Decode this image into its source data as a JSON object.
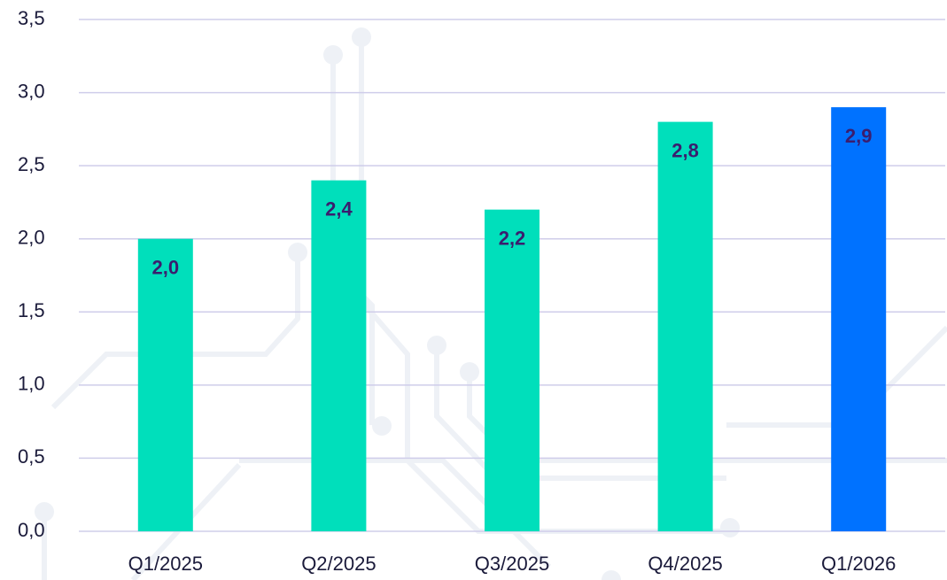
{
  "chart_data": {
    "type": "bar",
    "categories": [
      "Q1/2025",
      "Q2/2025",
      "Q3/2025",
      "Q4/2025",
      "Q1/2026"
    ],
    "values": [
      2.0,
      2.4,
      2.2,
      2.8,
      2.9
    ],
    "value_labels": [
      "2,0",
      "2,4",
      "2,2",
      "2,8",
      "2,9"
    ],
    "colors": [
      "#00dfbb",
      "#00dfbb",
      "#00dfbb",
      "#00dfbb",
      "#0072ff"
    ],
    "label_color": "#3b1d6e",
    "ylim": [
      0,
      3.5
    ],
    "yticks": [
      {
        "value": 0,
        "label": "0,0"
      },
      {
        "value": 0.5,
        "label": "0,5"
      },
      {
        "value": 1,
        "label": "1,0"
      },
      {
        "value": 1.5,
        "label": "1,5"
      },
      {
        "value": 2,
        "label": "2,0"
      },
      {
        "value": 2.5,
        "label": "2,5"
      },
      {
        "value": 3,
        "label": "3,0"
      },
      {
        "value": 3.5,
        "label": "3,5"
      }
    ],
    "grid": true
  }
}
